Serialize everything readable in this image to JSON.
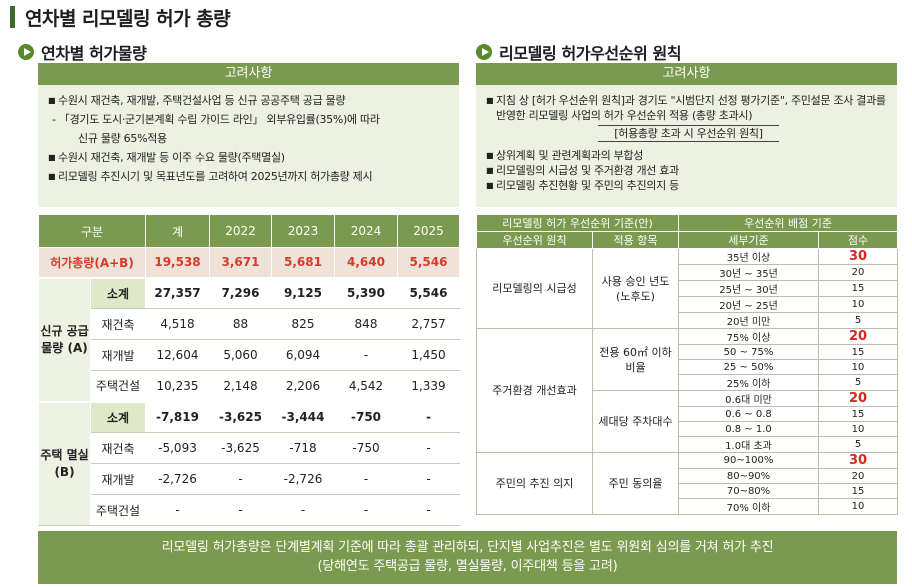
{
  "page_title": "연차별 리모델링 허가 총량",
  "left": {
    "section_title": "연차별 허가물량",
    "consider_head": "고려사항",
    "bullets": [
      "수원시 재건축, 재개발, 주택건설사업 등 신규 공공주택 공급 물량",
      "수원시 재건축, 재개발 등 이주 수요 물량(주택멸실)",
      "리모델링 추진시기 및 목표년도를 고려하여 2025년까지 허가총량 제시"
    ],
    "sub_lines": [
      "- 「경기도 도시·군기본계획 수립 가이드 라인」 외부유입률(35%)에 따라",
      "신규 물량 65%적용"
    ],
    "table": {
      "headers": [
        "구분",
        "계",
        "2022",
        "2023",
        "2024",
        "2025"
      ],
      "total": {
        "label": "허가총량(A+B)",
        "values": [
          "19,538",
          "3,671",
          "5,681",
          "4,640",
          "5,546"
        ]
      },
      "groups": [
        {
          "label": "신규 공급 물량 (A)",
          "rows": [
            {
              "label": "소계",
              "values": [
                "27,357",
                "7,296",
                "9,125",
                "5,390",
                "5,546"
              ]
            },
            {
              "label": "재건축",
              "values": [
                "4,518",
                "88",
                "825",
                "848",
                "2,757"
              ]
            },
            {
              "label": "재개발",
              "values": [
                "12,604",
                "5,060",
                "6,094",
                "-",
                "1,450"
              ]
            },
            {
              "label": "주택건설",
              "values": [
                "10,235",
                "2,148",
                "2,206",
                "4,542",
                "1,339"
              ]
            }
          ]
        },
        {
          "label": "주택 멸실 (B)",
          "rows": [
            {
              "label": "소계",
              "values": [
                "-7,819",
                "-3,625",
                "-3,444",
                "-750",
                "-"
              ]
            },
            {
              "label": "재건축",
              "values": [
                "-5,093",
                "-3,625",
                "-718",
                "-750",
                "-"
              ]
            },
            {
              "label": "재개발",
              "values": [
                "-2,726",
                "-",
                "-2,726",
                "-",
                "-"
              ]
            },
            {
              "label": "주택건설",
              "values": [
                "-",
                "-",
                "-",
                "-",
                "-"
              ]
            }
          ]
        }
      ]
    }
  },
  "right": {
    "section_title": "리모델링 허가우선순위 원칙",
    "consider_head": "고려사항",
    "bullet1": "지침 상 [허가 우선순위 원칙]과 경기도  \"시범단지 선정 평가기준\", 주민설문 조사  결과를 반영한 리모델링 사업의 허가  우선순위 적용 (총량 초과시)",
    "highlight": "[허용총량 초과 시 우선순위 원칙]",
    "bullets": [
      "상위계획 및 관련계획과의 부합성",
      "리모델링의 시급성 및 주거환경 개선 효과",
      "리모델링 추진현황 및 주민의 추진의지 등"
    ],
    "table": {
      "h1": [
        "리모델링 허가 우선순위 기준(안)",
        "우선순위 배점 기준"
      ],
      "h2": [
        "우선순위 원칙",
        "적용 항목",
        "세부기준",
        "점수"
      ],
      "principles": [
        "리모델링의 시급성",
        "주거환경 개선효과",
        "주민의 추진 의지"
      ],
      "items": [
        "사용 승인 년도 (노후도)",
        "전용 60㎡ 이하 비율",
        "세대당 주차대수",
        "주민 동의율"
      ],
      "rows": [
        {
          "c": "35년 이상",
          "s": "30"
        },
        {
          "c": "30년 ~ 35년",
          "s": "20"
        },
        {
          "c": "25년 ~ 30년",
          "s": "15"
        },
        {
          "c": "20년 ~ 25년",
          "s": "10"
        },
        {
          "c": "20년 미만",
          "s": "5"
        },
        {
          "c": "75% 이상",
          "s": "20"
        },
        {
          "c": "50 ~ 75%",
          "s": "15"
        },
        {
          "c": "25 ~ 50%",
          "s": "10"
        },
        {
          "c": "25% 이하",
          "s": "5"
        },
        {
          "c": "0.6대 미만",
          "s": "20"
        },
        {
          "c": "0.6 ~ 0.8",
          "s": "15"
        },
        {
          "c": "0.8 ~ 1.0",
          "s": "10"
        },
        {
          "c": "1.0대 초과",
          "s": "5"
        },
        {
          "c": "90~100%",
          "s": "30"
        },
        {
          "c": "80~90%",
          "s": "20"
        },
        {
          "c": "70~80%",
          "s": "15"
        },
        {
          "c": "70% 이하",
          "s": "10"
        }
      ]
    }
  },
  "footer": {
    "line1": "리모델링 허가총량은 단계별계획 기준에 따라 총괄 관리하되, 단지별 사업추진은 별도 위원회 심의를 거쳐 허가 추진",
    "line2": "(당해연도 주택공급 물량, 멸실물량, 이주대책 등을 고려)"
  },
  "colors": {
    "accent": "#7a9a4f",
    "red": "#d83a2a",
    "light": "#edf1e2"
  }
}
